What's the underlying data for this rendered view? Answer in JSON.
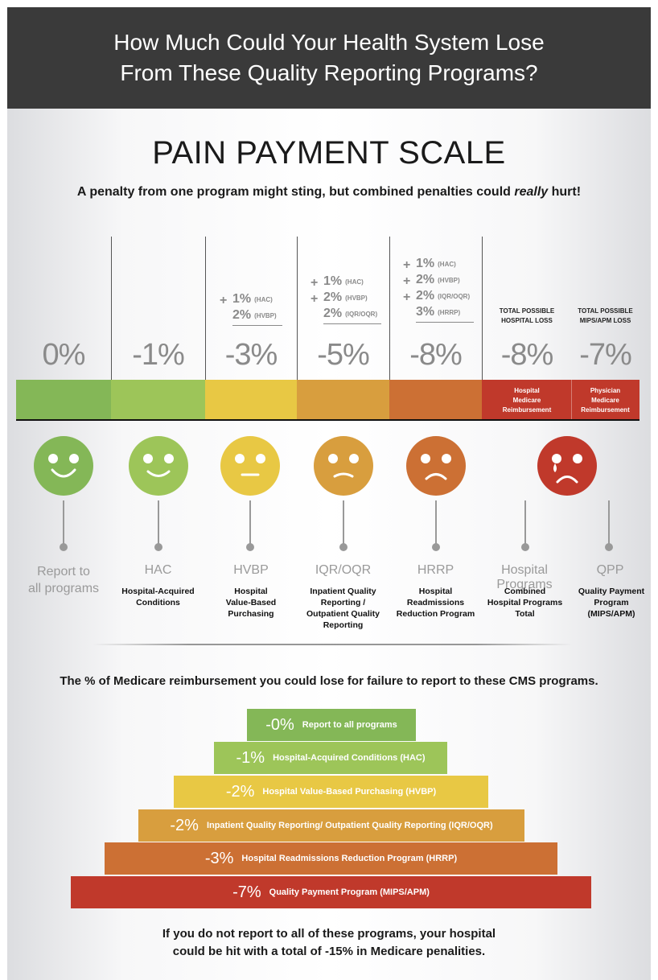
{
  "header": {
    "line1": "How Much Could Your Health System Lose",
    "line2": "From These Quality Reporting Programs?"
  },
  "title": "PAIN PAYMENT SCALE",
  "subtitle": {
    "before": "A penalty from one program might sting, but combined penalties could ",
    "emph": "really",
    "after": " hurt!"
  },
  "columns": [
    {
      "pct": "0%",
      "name": "Report to all programs",
      "name_line1": "Report to",
      "name_line2": "all programs",
      "desc": [],
      "color": "#84b757",
      "face": "happy"
    },
    {
      "pct": "-1%",
      "name": "HAC",
      "desc": [
        "Hospital-Acquired",
        "Conditions"
      ],
      "color": "#9dc559",
      "face": "happy"
    },
    {
      "pct": "-3%",
      "name": "HVBP",
      "desc": [
        "Hospital",
        "Value-Based",
        "Purchasing"
      ],
      "color": "#e8c844",
      "face": "neutral",
      "stack": [
        {
          "plus": "+",
          "val": "1%",
          "tag": "(HAC)"
        },
        {
          "plus": "",
          "val": "2%",
          "tag": "(HVBP)"
        }
      ]
    },
    {
      "pct": "-5%",
      "name": "IQR/OQR",
      "desc": [
        "Inpatient Quality",
        "Reporting /",
        "Outpatient Quality",
        "Reporting"
      ],
      "color": "#d89e3e",
      "face": "slight-frown",
      "stack": [
        {
          "plus": "+",
          "val": "1%",
          "tag": "(HAC)"
        },
        {
          "plus": "+",
          "val": "2%",
          "tag": "(HVBP)"
        },
        {
          "plus": "",
          "val": "2%",
          "tag": "(IQR/OQR)"
        }
      ]
    },
    {
      "pct": "-8%",
      "name": "HRRP",
      "desc": [
        "Hospital",
        "Readmissions",
        "Reduction Program"
      ],
      "color": "#cc7034",
      "face": "frown",
      "stack": [
        {
          "plus": "+",
          "val": "1%",
          "tag": "(HAC)"
        },
        {
          "plus": "+",
          "val": "2%",
          "tag": "(HVBP)"
        },
        {
          "plus": "+",
          "val": "2%",
          "tag": "(IQR/OQR)"
        },
        {
          "plus": "",
          "val": "3%",
          "tag": "(HRRP)"
        }
      ]
    },
    {
      "pct": "-8%",
      "name": "Hospital Programs",
      "desc": [
        "Combined",
        "Hospital Programs",
        "Total"
      ],
      "color": "#c0392b",
      "total": [
        "TOTAL POSSIBLE",
        "HOSPITAL LOSS"
      ],
      "bar_label": [
        "Hospital",
        "Medicare",
        "Reimbursement"
      ]
    },
    {
      "pct": "-7%",
      "name": "QPP",
      "desc": [
        "Quality Payment",
        "Program",
        "(MIPS/APM)"
      ],
      "color": "#c0392b",
      "total": [
        "TOTAL POSSIBLE",
        "MIPS/APM LOSS"
      ],
      "bar_label": [
        "Physician",
        "Medicare",
        "Reimbursement"
      ]
    }
  ],
  "sad_face_color": "#c0392b",
  "note": "The % of Medicare reimbursement you could lose for failure to report to these CMS programs.",
  "pyramid": [
    {
      "pct": "-0%",
      "label": "Report to all programs",
      "color": "#84b757"
    },
    {
      "pct": "-1%",
      "label": "Hospital-Acquired Conditions (HAC)",
      "color": "#9dc559"
    },
    {
      "pct": "-2%",
      "label": "Hospital Value-Based Purchasing (HVBP)",
      "color": "#e8c844"
    },
    {
      "pct": "-2%",
      "label": "Inpatient Quality Reporting/ Outpatient Quality Reporting (IQR/OQR)",
      "color": "#d89e3e"
    },
    {
      "pct": "-3%",
      "label": "Hospital Readmissions Reduction Program (HRRP)",
      "color": "#cc7034"
    },
    {
      "pct": "-7%",
      "label": "Quality Payment Program (MIPS/APM)",
      "color": "#c0392b"
    }
  ],
  "footer": {
    "line1": "If you do not report to all of these programs, your hospital",
    "line2": "could be hit with a total of -15% in Medicare penalities."
  }
}
